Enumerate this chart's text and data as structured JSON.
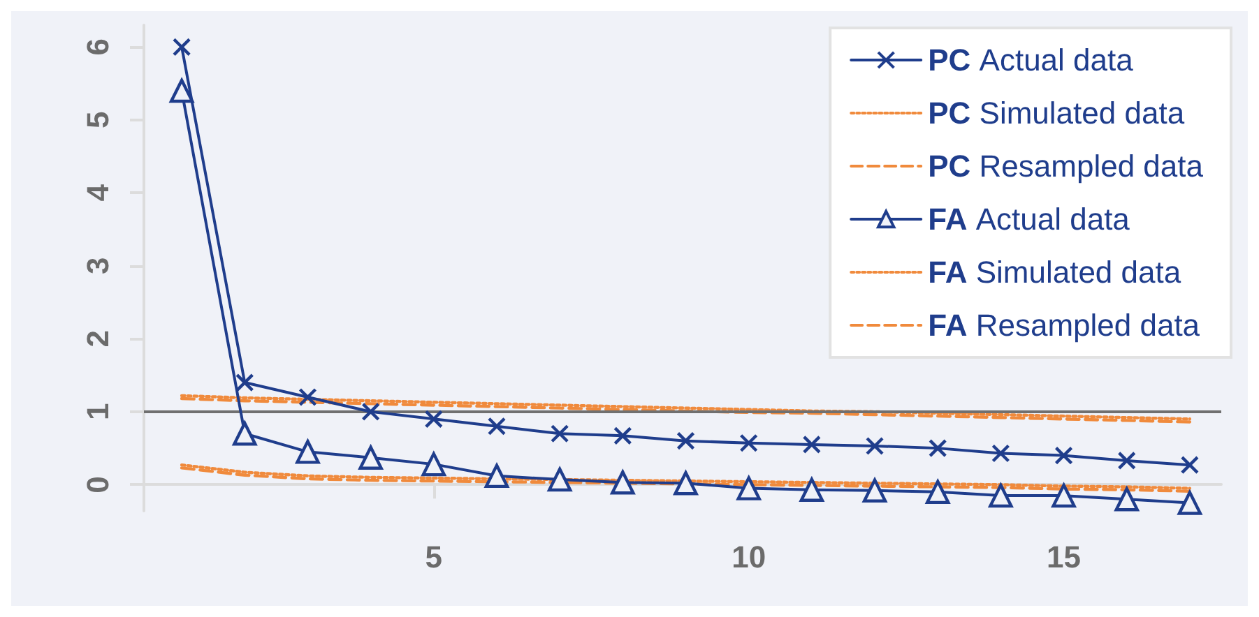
{
  "chart_data": {
    "type": "line",
    "x": [
      1,
      2,
      3,
      4,
      5,
      6,
      7,
      8,
      9,
      10,
      11,
      12,
      13,
      14,
      15,
      16,
      17
    ],
    "xlim": [
      0.4,
      17.5
    ],
    "xticks": [
      5,
      10,
      15
    ],
    "ylim": [
      -0.36,
      6.3
    ],
    "yticks": [
      0,
      1,
      2,
      3,
      4,
      5,
      6
    ],
    "grid": false,
    "legend": "top right",
    "ref_lines": [
      {
        "axis": "y",
        "value": 1,
        "color": "#707070"
      }
    ],
    "series": [
      {
        "name": "PC Actual data",
        "color": "#1f3d8c",
        "marker": "cross",
        "line_style": "solid",
        "values": [
          6.0,
          1.4,
          1.2,
          1.0,
          0.9,
          0.8,
          0.7,
          0.67,
          0.6,
          0.57,
          0.55,
          0.53,
          0.5,
          0.43,
          0.4,
          0.33,
          0.27
        ]
      },
      {
        "name": "PC Simulated data",
        "color": "#f08a3c",
        "marker": "none",
        "line_style": "dotted",
        "values": [
          1.22,
          1.19,
          1.17,
          1.15,
          1.13,
          1.11,
          1.09,
          1.07,
          1.05,
          1.03,
          1.01,
          1.0,
          0.98,
          0.96,
          0.94,
          0.92,
          0.9
        ]
      },
      {
        "name": "PC Resampled data",
        "color": "#f08a3c",
        "marker": "none",
        "line_style": "dashed",
        "values": [
          1.18,
          1.15,
          1.13,
          1.11,
          1.09,
          1.07,
          1.05,
          1.03,
          1.01,
          0.99,
          0.98,
          0.96,
          0.94,
          0.92,
          0.9,
          0.88,
          0.86
        ]
      },
      {
        "name": "FA Actual data",
        "color": "#1f3d8c",
        "marker": "triangle",
        "line_style": "solid",
        "values": [
          5.4,
          0.7,
          0.45,
          0.37,
          0.28,
          0.12,
          0.07,
          0.03,
          0.02,
          -0.05,
          -0.07,
          -0.08,
          -0.1,
          -0.15,
          -0.15,
          -0.2,
          -0.25
        ]
      },
      {
        "name": "FA Simulated data",
        "color": "#f08a3c",
        "marker": "none",
        "line_style": "dotted",
        "values": [
          0.27,
          0.17,
          0.12,
          0.1,
          0.09,
          0.08,
          0.07,
          0.06,
          0.05,
          0.04,
          0.03,
          0.02,
          0.01,
          0.0,
          -0.02,
          -0.03,
          -0.05
        ]
      },
      {
        "name": "FA Resampled data",
        "color": "#f08a3c",
        "marker": "none",
        "line_style": "dashed",
        "values": [
          0.23,
          0.13,
          0.08,
          0.06,
          0.05,
          0.04,
          0.03,
          0.02,
          0.01,
          0.0,
          -0.01,
          -0.02,
          -0.03,
          -0.04,
          -0.06,
          -0.07,
          -0.09
        ]
      }
    ]
  }
}
